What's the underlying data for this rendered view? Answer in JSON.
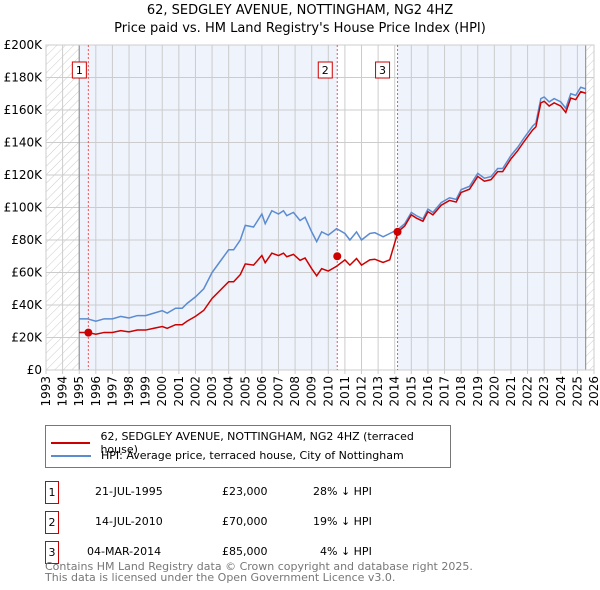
{
  "chart_data": {
    "type": "line",
    "title": "62, SEDGLEY AVENUE, NOTTINGHAM, NG2 4HZ",
    "subtitle": "Price paid vs. HM Land Registry's House Price Index (HPI)",
    "xlim": [
      1993,
      2026
    ],
    "ylim": [
      0,
      200000
    ],
    "y_ticks": [
      "£0",
      "£20K",
      "£40K",
      "£60K",
      "£80K",
      "£100K",
      "£120K",
      "£140K",
      "£160K",
      "£180K",
      "£200K"
    ],
    "x_ticks": [
      "1993",
      "1994",
      "1995",
      "1996",
      "1997",
      "1998",
      "1999",
      "2000",
      "2001",
      "2002",
      "2003",
      "2004",
      "2005",
      "2006",
      "2007",
      "2008",
      "2009",
      "2010",
      "2011",
      "2012",
      "2013",
      "2014",
      "2015",
      "2016",
      "2017",
      "2018",
      "2019",
      "2020",
      "2021",
      "2022",
      "2023",
      "2024",
      "2025",
      "2026"
    ],
    "grid": true,
    "data_start": 1995.0,
    "data_end": 2025.5,
    "series": [
      {
        "name": "HPI: Average price, terraced house, City of Nottingham",
        "color": "#5b8bd0",
        "points": [
          [
            1995,
            31500
          ],
          [
            1995.5,
            31500
          ],
          [
            1996,
            30000
          ],
          [
            1996.5,
            31500
          ],
          [
            1997,
            31500
          ],
          [
            1997.5,
            33000
          ],
          [
            1998,
            32000
          ],
          [
            1998.5,
            33500
          ],
          [
            1999,
            33500
          ],
          [
            1999.5,
            35000
          ],
          [
            2000,
            36500
          ],
          [
            2000.3,
            35000
          ],
          [
            2000.8,
            38000
          ],
          [
            2001.2,
            38000
          ],
          [
            2001.5,
            41000
          ],
          [
            2002,
            45000
          ],
          [
            2002.5,
            50000
          ],
          [
            2003,
            60000
          ],
          [
            2003.5,
            67000
          ],
          [
            2004,
            74000
          ],
          [
            2004.3,
            74000
          ],
          [
            2004.7,
            80000
          ],
          [
            2005,
            89000
          ],
          [
            2005.5,
            88000
          ],
          [
            2006,
            96000
          ],
          [
            2006.2,
            90000
          ],
          [
            2006.6,
            98000
          ],
          [
            2007,
            96000
          ],
          [
            2007.3,
            98000
          ],
          [
            2007.5,
            95000
          ],
          [
            2007.9,
            97000
          ],
          [
            2008.3,
            92000
          ],
          [
            2008.6,
            94000
          ],
          [
            2009,
            85000
          ],
          [
            2009.3,
            79000
          ],
          [
            2009.6,
            85000
          ],
          [
            2010,
            83000
          ],
          [
            2010.5,
            87000
          ],
          [
            2011,
            84000
          ],
          [
            2011.3,
            80000
          ],
          [
            2011.7,
            85000
          ],
          [
            2012,
            80000
          ],
          [
            2012.5,
            84000
          ],
          [
            2012.8,
            84500
          ],
          [
            2013.3,
            82000
          ],
          [
            2013.7,
            84000
          ],
          [
            2014.2,
            86500
          ],
          [
            2014.6,
            90000
          ],
          [
            2015,
            97000
          ],
          [
            2015.3,
            95000
          ],
          [
            2015.7,
            93000
          ],
          [
            2016,
            99000
          ],
          [
            2016.3,
            97000
          ],
          [
            2016.8,
            103000
          ],
          [
            2017.3,
            106000
          ],
          [
            2017.7,
            105000
          ],
          [
            2018,
            111000
          ],
          [
            2018.5,
            113000
          ],
          [
            2019,
            121000
          ],
          [
            2019.4,
            118000
          ],
          [
            2019.8,
            119000
          ],
          [
            2020.2,
            124000
          ],
          [
            2020.5,
            124000
          ],
          [
            2021,
            132000
          ],
          [
            2021.4,
            137000
          ],
          [
            2021.8,
            143000
          ],
          [
            2022.3,
            150000
          ],
          [
            2022.5,
            152000
          ],
          [
            2022.8,
            167000
          ],
          [
            2023,
            168000
          ],
          [
            2023.3,
            165000
          ],
          [
            2023.6,
            167000
          ],
          [
            2024,
            165000
          ],
          [
            2024.3,
            161000
          ],
          [
            2024.6,
            170000
          ],
          [
            2024.9,
            169000
          ],
          [
            2025.2,
            174000
          ],
          [
            2025.5,
            173000
          ]
        ]
      },
      {
        "name": "62, SEDGLEY AVENUE, NOTTINGHAM, NG2 4HZ (terraced house)",
        "color": "#cc0000",
        "derived_from_hpi_and_sales": true
      }
    ],
    "sales": [
      {
        "id": "1",
        "x": 1995.55,
        "date": "21-JUL-1995",
        "price": "£23,000",
        "value": 23000,
        "hpi_diff": "28% ↓ HPI"
      },
      {
        "id": "2",
        "x": 2010.54,
        "date": "14-JUL-2010",
        "price": "£70,000",
        "value": 70000,
        "hpi_diff": "19% ↓ HPI"
      },
      {
        "id": "3",
        "x": 2014.17,
        "date": "04-MAR-2014",
        "price": "£85,000",
        "value": 85000,
        "hpi_diff": "4% ↓ HPI"
      }
    ]
  },
  "legend": {
    "property": "62, SEDGLEY AVENUE, NOTTINGHAM, NG2 4HZ (terraced house)",
    "hpi": "HPI: Average price, terraced house, City of Nottingham"
  },
  "footer": {
    "line1": "Contains HM Land Registry data © Crown copyright and database right 2025.",
    "line2": "This data is licensed under the Open Government Licence v3.0."
  }
}
